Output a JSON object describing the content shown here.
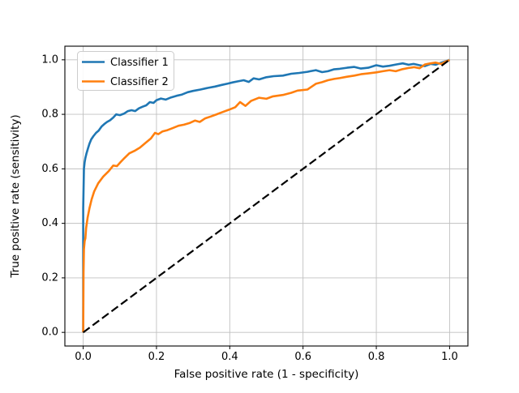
{
  "chart_data": {
    "type": "line",
    "title": "",
    "xlabel": "False positive rate (1 - specificity)",
    "ylabel": "True positive rate (sensitivity)",
    "xlim": [
      -0.05,
      1.05
    ],
    "ylim": [
      -0.05,
      1.05
    ],
    "grid": true,
    "grid_color": "#c0c0c0",
    "spine_color": "#000000",
    "xticks": [
      0.0,
      0.2,
      0.4,
      0.6,
      0.8,
      1.0
    ],
    "xtick_labels": [
      "0.0",
      "0.2",
      "0.4",
      "0.6",
      "0.8",
      "1.0"
    ],
    "yticks": [
      0.0,
      0.2,
      0.4,
      0.6,
      0.8,
      1.0
    ],
    "ytick_labels": [
      "0.0",
      "0.2",
      "0.4",
      "0.6",
      "0.8",
      "1.0"
    ],
    "legend": {
      "position": "upper left",
      "entries": [
        "Classifier 1",
        "Classifier 2"
      ],
      "border_color": "#cccccc",
      "background": "#ffffff"
    },
    "series": [
      {
        "name": "Classifier 1",
        "color": "#1f77b4",
        "style": "solid",
        "width": 2.6,
        "in_legend": true,
        "points": [
          [
            0.0,
            0.0
          ],
          [
            0.0,
            0.455
          ],
          [
            0.002,
            0.6
          ],
          [
            0.004,
            0.625
          ],
          [
            0.006,
            0.64
          ],
          [
            0.009,
            0.657
          ],
          [
            0.013,
            0.675
          ],
          [
            0.017,
            0.692
          ],
          [
            0.022,
            0.708
          ],
          [
            0.028,
            0.72
          ],
          [
            0.035,
            0.732
          ],
          [
            0.042,
            0.74
          ],
          [
            0.05,
            0.755
          ],
          [
            0.058,
            0.765
          ],
          [
            0.065,
            0.772
          ],
          [
            0.073,
            0.778
          ],
          [
            0.082,
            0.788
          ],
          [
            0.09,
            0.8
          ],
          [
            0.1,
            0.797
          ],
          [
            0.112,
            0.803
          ],
          [
            0.122,
            0.812
          ],
          [
            0.132,
            0.815
          ],
          [
            0.142,
            0.812
          ],
          [
            0.152,
            0.822
          ],
          [
            0.162,
            0.828
          ],
          [
            0.172,
            0.833
          ],
          [
            0.182,
            0.845
          ],
          [
            0.192,
            0.842
          ],
          [
            0.2,
            0.852
          ],
          [
            0.212,
            0.858
          ],
          [
            0.225,
            0.854
          ],
          [
            0.24,
            0.862
          ],
          [
            0.255,
            0.868
          ],
          [
            0.268,
            0.872
          ],
          [
            0.285,
            0.881
          ],
          [
            0.3,
            0.886
          ],
          [
            0.32,
            0.891
          ],
          [
            0.34,
            0.897
          ],
          [
            0.36,
            0.902
          ],
          [
            0.378,
            0.908
          ],
          [
            0.395,
            0.913
          ],
          [
            0.408,
            0.917
          ],
          [
            0.422,
            0.921
          ],
          [
            0.438,
            0.925
          ],
          [
            0.452,
            0.919
          ],
          [
            0.465,
            0.932
          ],
          [
            0.48,
            0.928
          ],
          [
            0.5,
            0.936
          ],
          [
            0.52,
            0.94
          ],
          [
            0.545,
            0.942
          ],
          [
            0.568,
            0.949
          ],
          [
            0.59,
            0.952
          ],
          [
            0.612,
            0.956
          ],
          [
            0.635,
            0.962
          ],
          [
            0.652,
            0.955
          ],
          [
            0.668,
            0.958
          ],
          [
            0.684,
            0.965
          ],
          [
            0.7,
            0.967
          ],
          [
            0.72,
            0.971
          ],
          [
            0.74,
            0.974
          ],
          [
            0.758,
            0.968
          ],
          [
            0.778,
            0.971
          ],
          [
            0.8,
            0.98
          ],
          [
            0.818,
            0.975
          ],
          [
            0.836,
            0.978
          ],
          [
            0.855,
            0.983
          ],
          [
            0.872,
            0.987
          ],
          [
            0.888,
            0.982
          ],
          [
            0.902,
            0.985
          ],
          [
            0.918,
            0.98
          ],
          [
            0.932,
            0.977
          ],
          [
            0.948,
            0.985
          ],
          [
            0.962,
            0.982
          ],
          [
            0.978,
            0.99
          ],
          [
            0.99,
            0.995
          ],
          [
            1.0,
            1.0
          ]
        ]
      },
      {
        "name": "Classifier 2",
        "color": "#ff7f0e",
        "style": "solid",
        "width": 2.6,
        "in_legend": true,
        "points": [
          [
            0.0,
            0.0
          ],
          [
            0.001,
            0.22
          ],
          [
            0.002,
            0.305
          ],
          [
            0.004,
            0.335
          ],
          [
            0.006,
            0.345
          ],
          [
            0.008,
            0.383
          ],
          [
            0.012,
            0.42
          ],
          [
            0.017,
            0.455
          ],
          [
            0.023,
            0.488
          ],
          [
            0.03,
            0.517
          ],
          [
            0.041,
            0.547
          ],
          [
            0.055,
            0.572
          ],
          [
            0.07,
            0.592
          ],
          [
            0.082,
            0.612
          ],
          [
            0.092,
            0.61
          ],
          [
            0.102,
            0.625
          ],
          [
            0.113,
            0.64
          ],
          [
            0.126,
            0.657
          ],
          [
            0.14,
            0.666
          ],
          [
            0.155,
            0.678
          ],
          [
            0.17,
            0.695
          ],
          [
            0.185,
            0.712
          ],
          [
            0.196,
            0.732
          ],
          [
            0.205,
            0.727
          ],
          [
            0.216,
            0.737
          ],
          [
            0.23,
            0.742
          ],
          [
            0.245,
            0.75
          ],
          [
            0.26,
            0.758
          ],
          [
            0.275,
            0.762
          ],
          [
            0.29,
            0.768
          ],
          [
            0.305,
            0.777
          ],
          [
            0.318,
            0.772
          ],
          [
            0.333,
            0.785
          ],
          [
            0.348,
            0.792
          ],
          [
            0.364,
            0.8
          ],
          [
            0.378,
            0.807
          ],
          [
            0.398,
            0.817
          ],
          [
            0.415,
            0.826
          ],
          [
            0.428,
            0.845
          ],
          [
            0.443,
            0.831
          ],
          [
            0.458,
            0.849
          ],
          [
            0.48,
            0.861
          ],
          [
            0.5,
            0.857
          ],
          [
            0.518,
            0.866
          ],
          [
            0.545,
            0.871
          ],
          [
            0.568,
            0.879
          ],
          [
            0.585,
            0.887
          ],
          [
            0.612,
            0.891
          ],
          [
            0.635,
            0.912
          ],
          [
            0.652,
            0.918
          ],
          [
            0.668,
            0.925
          ],
          [
            0.685,
            0.93
          ],
          [
            0.7,
            0.933
          ],
          [
            0.72,
            0.938
          ],
          [
            0.74,
            0.942
          ],
          [
            0.758,
            0.947
          ],
          [
            0.778,
            0.95
          ],
          [
            0.8,
            0.954
          ],
          [
            0.818,
            0.958
          ],
          [
            0.836,
            0.962
          ],
          [
            0.853,
            0.958
          ],
          [
            0.872,
            0.966
          ],
          [
            0.888,
            0.97
          ],
          [
            0.903,
            0.973
          ],
          [
            0.918,
            0.969
          ],
          [
            0.933,
            0.983
          ],
          [
            0.948,
            0.987
          ],
          [
            0.962,
            0.99
          ],
          [
            0.977,
            0.985
          ],
          [
            0.99,
            0.994
          ],
          [
            1.0,
            0.999
          ]
        ]
      },
      {
        "name": "chance-diagonal",
        "color": "#000000",
        "style": "dashed",
        "width": 2.2,
        "in_legend": false,
        "points": [
          [
            0.0,
            0.0
          ],
          [
            1.0,
            1.0
          ]
        ]
      }
    ]
  }
}
